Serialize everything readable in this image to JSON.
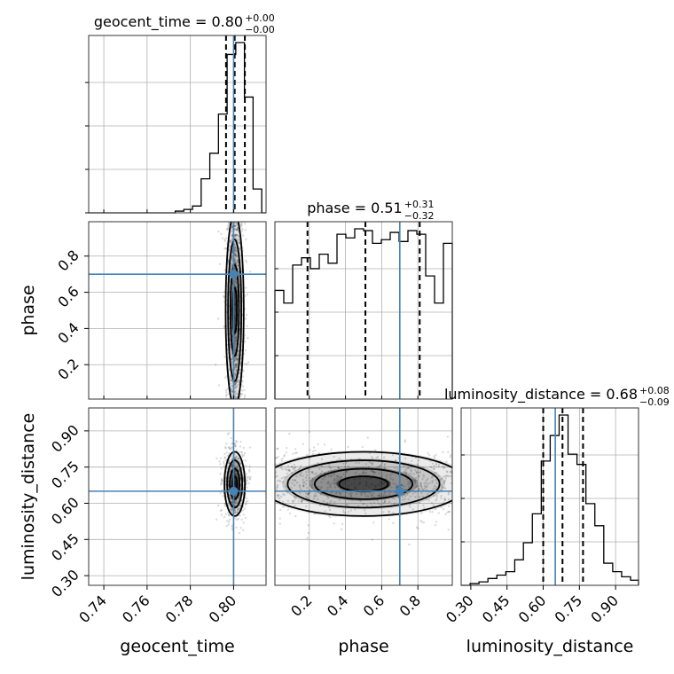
{
  "colors": {
    "truth": "#4682b4",
    "hist": "#000000",
    "grid": "#b0b0b0"
  },
  "chart_data": {
    "type": "corner",
    "parameters": [
      {
        "name": "geocent_time",
        "label": "geocent_time",
        "range": [
          0.733,
          0.815
        ],
        "ticks": [
          0.74,
          0.76,
          0.78,
          0.8
        ],
        "tick_labels": [
          "0.74",
          "0.76",
          "0.78",
          "0.80"
        ],
        "truth": 0.8,
        "title": {
          "prefix": "geocent_time = 0.80",
          "plus": "+0.00",
          "minus": "−0.00"
        },
        "quantiles": [
          0.7965,
          0.8005,
          0.8052
        ],
        "hist_edges": [
          0.733,
          0.737,
          0.741,
          0.745,
          0.749,
          0.753,
          0.757,
          0.761,
          0.765,
          0.769,
          0.773,
          0.777,
          0.781,
          0.785,
          0.789,
          0.793,
          0.797,
          0.801,
          0.805,
          0.809,
          0.813,
          0.815
        ],
        "hist_counts": [
          0,
          0,
          0,
          0,
          0,
          0,
          0,
          0,
          0,
          0,
          0.01,
          0.02,
          0.04,
          0.2,
          0.35,
          0.58,
          0.93,
          1.0,
          0.68,
          0.14,
          0
        ]
      },
      {
        "name": "phase",
        "label": "phase",
        "range": [
          0.01,
          0.99
        ],
        "ticks": [
          0.2,
          0.4,
          0.6,
          0.8
        ],
        "tick_labels": [
          "0.2",
          "0.4",
          "0.6",
          "0.8"
        ],
        "truth": 0.7,
        "title": {
          "prefix": "phase = 0.51",
          "plus": "+0.31",
          "minus": "−0.32"
        },
        "quantiles": [
          0.19,
          0.51,
          0.81
        ],
        "hist_edges": [
          0.01,
          0.059,
          0.108,
          0.157,
          0.206,
          0.255,
          0.304,
          0.353,
          0.402,
          0.451,
          0.5,
          0.549,
          0.598,
          0.647,
          0.696,
          0.745,
          0.794,
          0.843,
          0.892,
          0.941,
          0.99
        ],
        "hist_counts": [
          0.6,
          0.53,
          0.74,
          0.78,
          0.72,
          0.8,
          0.75,
          0.91,
          0.89,
          0.94,
          0.93,
          0.86,
          0.88,
          0.92,
          0.87,
          0.93,
          0.91,
          0.68,
          0.53,
          0.86
        ]
      },
      {
        "name": "luminosity_distance",
        "label": "luminosity_distance",
        "range": [
          0.26,
          0.995
        ],
        "ticks": [
          0.3,
          0.45,
          0.6,
          0.75,
          0.9
        ],
        "tick_labels": [
          "0.30",
          "0.45",
          "0.60",
          "0.75",
          "0.90"
        ],
        "truth": 0.65,
        "title": {
          "prefix": "luminosity_distance = 0.68",
          "plus": "+0.08",
          "minus": "−0.09"
        },
        "quantiles": [
          0.6,
          0.68,
          0.765
        ],
        "hist_edges": [
          0.26,
          0.297,
          0.334,
          0.371,
          0.408,
          0.445,
          0.482,
          0.518,
          0.555,
          0.592,
          0.629,
          0.666,
          0.703,
          0.74,
          0.777,
          0.814,
          0.851,
          0.888,
          0.925,
          0.962,
          0.995
        ],
        "hist_counts": [
          0,
          0.01,
          0.02,
          0.04,
          0.06,
          0.08,
          0.15,
          0.25,
          0.42,
          0.73,
          0.88,
          1.0,
          0.77,
          0.71,
          0.48,
          0.35,
          0.13,
          0.08,
          0.05,
          0.03
        ]
      }
    ],
    "scatter_2d": [
      {
        "x": "geocent_time",
        "y": "phase",
        "center": [
          0.8005,
          0.5
        ],
        "spread": [
          0.0022,
          0.28
        ]
      },
      {
        "x": "geocent_time",
        "y": "luminosity_distance",
        "center": [
          0.8005,
          0.68
        ],
        "spread": [
          0.0025,
          0.07
        ]
      },
      {
        "x": "phase",
        "y": "luminosity_distance",
        "center": [
          0.5,
          0.68
        ],
        "spread": [
          0.3,
          0.07
        ]
      }
    ]
  }
}
